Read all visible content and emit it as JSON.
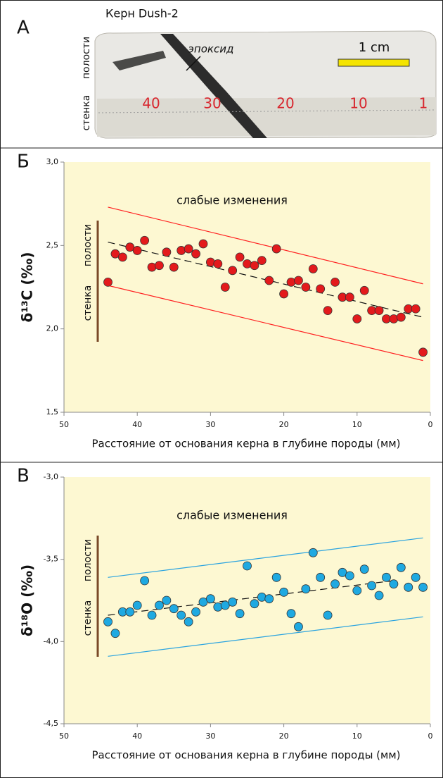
{
  "panel_a": {
    "label": "А",
    "title": "Керн Dush-2",
    "wall_top": "полости",
    "wall_bottom": "стенка",
    "epoxy": "эпоксид",
    "scale": "1 cm",
    "ruler": [
      "40",
      "30",
      "20",
      "10",
      "1"
    ]
  },
  "chart_data": [
    {
      "type": "scatter",
      "panel_label": "Б",
      "annotation": "слабые изменения",
      "wall_labels": [
        "стенка",
        "полости"
      ],
      "xlabel": "Расстояние от основания керна в глубине породы (мм)",
      "ylabel": "δ¹³C (‰)",
      "xlim": [
        50,
        0
      ],
      "xticks": [
        50,
        40,
        30,
        20,
        10,
        0
      ],
      "ylim": [
        1.5,
        3.0
      ],
      "yticks": [
        {
          "value": 1.5,
          "label": "1,5"
        },
        {
          "value": 2.0,
          "label": "2,0"
        },
        {
          "value": 2.5,
          "label": "2,5"
        },
        {
          "value": 3.0,
          "label": "3,0"
        }
      ],
      "background": "#fdf8d2",
      "series": [
        {
          "color": "#e31a1c",
          "x": [
            44,
            43,
            42,
            41,
            40,
            39,
            38,
            37,
            36,
            35,
            34,
            33,
            32,
            31,
            30,
            29,
            28,
            27,
            26,
            25,
            24,
            23,
            22,
            21,
            20,
            19,
            18,
            17,
            16,
            15,
            14,
            13,
            12,
            11,
            10,
            9,
            8,
            7,
            6,
            5,
            4,
            3,
            2,
            1
          ],
          "values": [
            2.28,
            2.45,
            2.43,
            2.49,
            2.47,
            2.53,
            2.37,
            2.38,
            2.46,
            2.37,
            2.47,
            2.48,
            2.45,
            2.51,
            2.4,
            2.39,
            2.25,
            2.35,
            2.43,
            2.39,
            2.38,
            2.41,
            2.29,
            2.48,
            2.21,
            2.28,
            2.29,
            2.25,
            2.36,
            2.24,
            2.11,
            2.28,
            2.19,
            2.19,
            2.06,
            2.23,
            2.11,
            2.11,
            2.06,
            2.06,
            2.07,
            2.12,
            2.12,
            1.86
          ]
        }
      ],
      "lines": [
        {
          "color": "#ff2020",
          "dashed": false,
          "x": [
            44,
            1
          ],
          "values": [
            2.73,
            2.27
          ]
        },
        {
          "color": "#ff2020",
          "dashed": false,
          "x": [
            44,
            1
          ],
          "values": [
            2.26,
            1.81
          ]
        },
        {
          "color": "#111111",
          "dashed": true,
          "x": [
            44,
            1
          ],
          "values": [
            2.52,
            2.07
          ]
        }
      ]
    },
    {
      "type": "scatter",
      "panel_label": "В",
      "annotation": "слабые изменения",
      "wall_labels": [
        "стенка",
        "полости"
      ],
      "xlabel": "Расстояние от основания керна в глубине породы (мм)",
      "ylabel": "δ¹⁸O (‰)",
      "xlim": [
        50,
        0
      ],
      "xticks": [
        50,
        40,
        30,
        20,
        10,
        0
      ],
      "ylim": [
        -4.5,
        -3.0
      ],
      "yticks": [
        {
          "value": -4.5,
          "label": "-4,5"
        },
        {
          "value": -4.0,
          "label": "-4,0"
        },
        {
          "value": -3.5,
          "label": "-3,5"
        },
        {
          "value": -3.0,
          "label": "-3,0"
        }
      ],
      "background": "#fdf8d2",
      "series": [
        {
          "color": "#1fa9e1",
          "x": [
            44,
            43,
            42,
            41,
            40,
            39,
            38,
            37,
            36,
            35,
            34,
            33,
            32,
            31,
            30,
            29,
            28,
            27,
            26,
            25,
            24,
            23,
            22,
            21,
            20,
            19,
            18,
            17,
            16,
            15,
            14,
            13,
            12,
            11,
            10,
            9,
            8,
            7,
            6,
            5,
            4,
            3,
            2,
            1
          ],
          "values": [
            -3.88,
            -3.95,
            -3.82,
            -3.82,
            -3.78,
            -3.63,
            -3.84,
            -3.78,
            -3.75,
            -3.8,
            -3.84,
            -3.88,
            -3.82,
            -3.76,
            -3.74,
            -3.79,
            -3.78,
            -3.76,
            -3.83,
            -3.54,
            -3.77,
            -3.73,
            -3.74,
            -3.61,
            -3.7,
            -3.83,
            -3.91,
            -3.68,
            -3.46,
            -3.61,
            -3.84,
            -3.65,
            -3.58,
            -3.6,
            -3.69,
            -3.56,
            -3.66,
            -3.72,
            -3.61,
            -3.65,
            -3.55,
            -3.67,
            -3.61,
            -3.67
          ]
        }
      ],
      "lines": [
        {
          "color": "#29a3e0",
          "dashed": false,
          "x": [
            44,
            1
          ],
          "values": [
            -3.61,
            -3.37
          ]
        },
        {
          "color": "#29a3e0",
          "dashed": false,
          "x": [
            44,
            1
          ],
          "values": [
            -4.09,
            -3.85
          ]
        },
        {
          "color": "#111111",
          "dashed": true,
          "x": [
            44,
            5
          ],
          "values": [
            -3.84,
            -3.63
          ]
        }
      ]
    }
  ]
}
